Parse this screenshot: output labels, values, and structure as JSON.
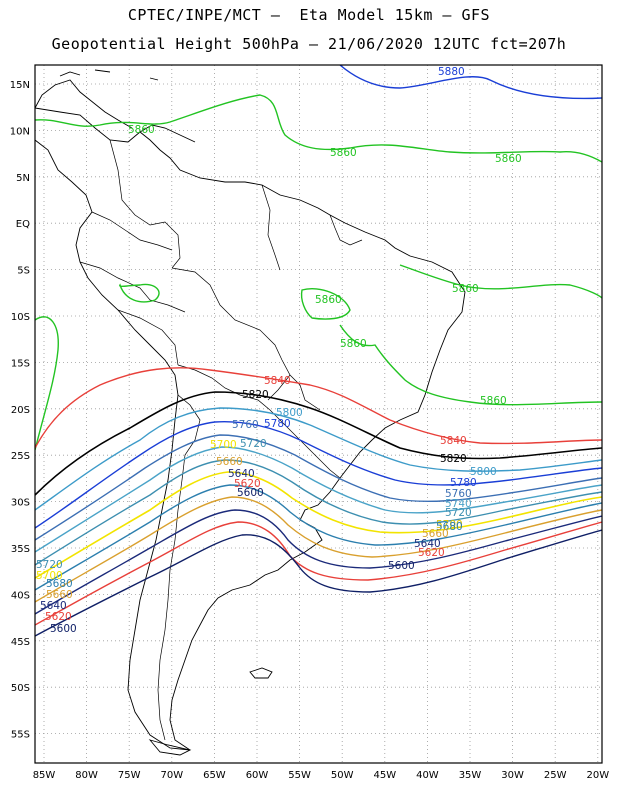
{
  "title_line1": "CPTEC/INPE/MCT –  Eta Model 15km – GFS",
  "title_line2": "Geopotential Height 500hPa – 21/06/2020 12UTC fct=207h",
  "lat_labels": [
    "15N",
    "10N",
    "5N",
    "EQ",
    "5S",
    "10S",
    "15S",
    "20S",
    "25S",
    "30S",
    "35S",
    "40S",
    "45S",
    "50S",
    "55S"
  ],
  "lon_labels": [
    "85W",
    "80W",
    "75W",
    "70W",
    "65W",
    "60W",
    "55W",
    "50W",
    "45W",
    "40W",
    "35W",
    "30W",
    "25W",
    "20W"
  ],
  "contours": [
    {
      "value": "5880",
      "color": "#1a3ed6"
    },
    {
      "value": "5860",
      "color": "#22c322"
    },
    {
      "value": "5840",
      "color": "#e8403a"
    },
    {
      "value": "5820",
      "color": "#000000"
    },
    {
      "value": "5800",
      "color": "#3d9bc9"
    },
    {
      "value": "5780",
      "color": "#1a3ed6"
    },
    {
      "value": "5760",
      "color": "#3c6fb4"
    },
    {
      "value": "5740",
      "color": "#4aa3c8"
    },
    {
      "value": "5720",
      "color": "#3d8fb0"
    },
    {
      "value": "5700",
      "color": "#f2e400"
    },
    {
      "value": "5680",
      "color": "#2c7fae"
    },
    {
      "value": "5660",
      "color": "#d9a02e"
    },
    {
      "value": "5640",
      "color": "#1b2a7a"
    },
    {
      "value": "5620",
      "color": "#e8403a"
    },
    {
      "value": "5600",
      "color": "#0f1f66"
    }
  ]
}
